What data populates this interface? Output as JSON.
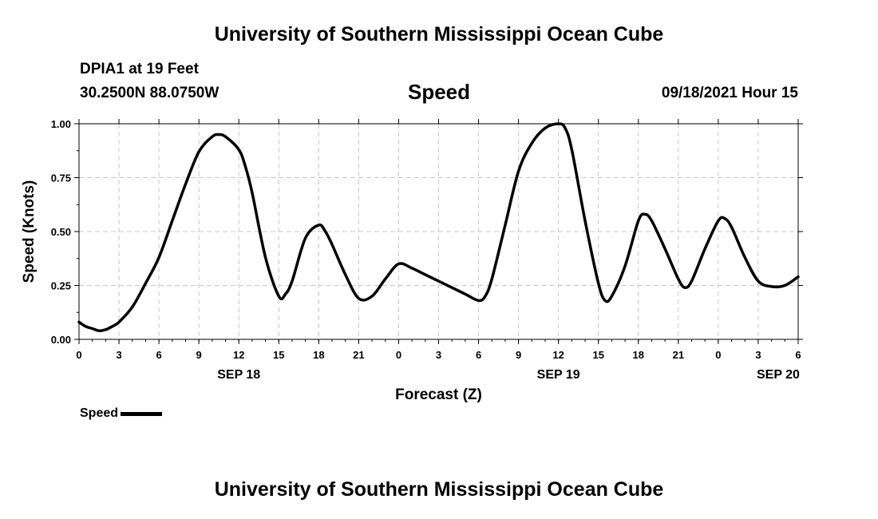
{
  "header": {
    "title": "University of Southern Mississippi Ocean Cube",
    "station": "DPIA1 at 19 Feet",
    "coordinates": "30.2500N  88.0750W",
    "timestamp": "09/18/2021 Hour 15"
  },
  "footer": {
    "title": "University of Southern Mississippi Ocean Cube"
  },
  "legend": {
    "label": "Speed"
  },
  "colors": {
    "line": "#000000",
    "grid": "#c8c8c8",
    "axis": "#000000"
  },
  "chart_data": {
    "type": "line",
    "title": "Speed",
    "xlabel": "Forecast (Z)",
    "ylabel": "Speed (Knots)",
    "ylim": [
      0,
      1
    ],
    "xlim": [
      0,
      54
    ],
    "grid": true,
    "y_ticks": [
      {
        "value": 0.0,
        "label": "0.00"
      },
      {
        "value": 0.25,
        "label": "0.25"
      },
      {
        "value": 0.5,
        "label": "0.50"
      },
      {
        "value": 0.75,
        "label": "0.75"
      },
      {
        "value": 1.0,
        "label": "1.00"
      }
    ],
    "x_ticks": [
      {
        "hour": 0,
        "label": "0"
      },
      {
        "hour": 3,
        "label": "3"
      },
      {
        "hour": 6,
        "label": "6"
      },
      {
        "hour": 9,
        "label": "9"
      },
      {
        "hour": 12,
        "label": "12"
      },
      {
        "hour": 15,
        "label": "15"
      },
      {
        "hour": 18,
        "label": "18"
      },
      {
        "hour": 21,
        "label": "21"
      },
      {
        "hour": 24,
        "label": "0"
      },
      {
        "hour": 27,
        "label": "3"
      },
      {
        "hour": 30,
        "label": "6"
      },
      {
        "hour": 33,
        "label": "9"
      },
      {
        "hour": 36,
        "label": "12"
      },
      {
        "hour": 39,
        "label": "15"
      },
      {
        "hour": 42,
        "label": "18"
      },
      {
        "hour": 45,
        "label": "21"
      },
      {
        "hour": 48,
        "label": "0"
      },
      {
        "hour": 51,
        "label": "3"
      },
      {
        "hour": 54,
        "label": "6"
      }
    ],
    "date_labels": [
      {
        "hour": 12,
        "label": "SEP 18"
      },
      {
        "hour": 36,
        "label": "SEP 19"
      },
      {
        "hour": 52.5,
        "label": "SEP 20"
      }
    ],
    "series": [
      {
        "name": "Speed",
        "x": [
          0,
          0.5,
          1,
          1.5,
          2,
          2.5,
          3,
          4,
          5,
          6,
          7,
          8,
          9,
          10,
          10.5,
          11,
          12,
          12.5,
          13,
          14,
          15,
          15.5,
          16,
          17,
          18,
          18.5,
          19,
          20,
          21,
          22,
          23,
          24,
          25,
          26,
          27,
          28,
          29,
          30,
          30.5,
          31,
          32,
          33,
          34,
          35,
          36,
          36.5,
          37,
          38,
          39,
          39.5,
          40,
          41,
          42,
          42.5,
          43,
          44,
          45,
          45.5,
          46,
          47,
          48,
          48.5,
          49,
          50,
          51,
          52,
          53,
          54
        ],
        "values": [
          0.08,
          0.06,
          0.05,
          0.04,
          0.045,
          0.06,
          0.08,
          0.15,
          0.26,
          0.38,
          0.55,
          0.72,
          0.87,
          0.94,
          0.95,
          0.94,
          0.88,
          0.8,
          0.68,
          0.38,
          0.2,
          0.21,
          0.27,
          0.47,
          0.53,
          0.5,
          0.44,
          0.3,
          0.19,
          0.2,
          0.28,
          0.35,
          0.33,
          0.3,
          0.27,
          0.24,
          0.21,
          0.18,
          0.2,
          0.28,
          0.53,
          0.78,
          0.91,
          0.98,
          1.0,
          0.98,
          0.88,
          0.55,
          0.26,
          0.18,
          0.2,
          0.34,
          0.55,
          0.58,
          0.55,
          0.42,
          0.28,
          0.24,
          0.27,
          0.42,
          0.55,
          0.56,
          0.52,
          0.38,
          0.27,
          0.245,
          0.25,
          0.29
        ]
      }
    ]
  }
}
